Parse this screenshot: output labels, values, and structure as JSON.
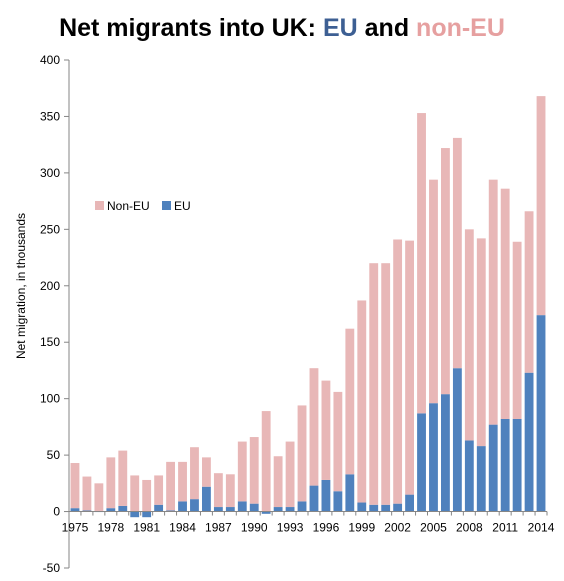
{
  "chart_data": {
    "type": "bar",
    "stacked": true,
    "title_parts": [
      "Net migrants into UK: ",
      "EU",
      " and ",
      "non-EU"
    ],
    "ylabel": "Net migration, in thousands",
    "xlabel": "",
    "ylim": [
      -50,
      400
    ],
    "yticks": [
      -50,
      0,
      50,
      100,
      150,
      200,
      250,
      300,
      350,
      400
    ],
    "categories": [
      1975,
      1976,
      1977,
      1978,
      1979,
      1980,
      1981,
      1982,
      1983,
      1984,
      1985,
      1986,
      1987,
      1988,
      1989,
      1990,
      1991,
      1992,
      1993,
      1994,
      1995,
      1996,
      1997,
      1998,
      1999,
      2000,
      2001,
      2002,
      2003,
      2004,
      2005,
      2006,
      2007,
      2008,
      2009,
      2010,
      2011,
      2012,
      2013,
      2014
    ],
    "xtick_labels": [
      "1975",
      "1978",
      "1981",
      "1984",
      "1987",
      "1990",
      "1993",
      "1996",
      "1999",
      "2002",
      "2005",
      "2008",
      "2011",
      "2014"
    ],
    "legend_position": "upper-left",
    "grid": false,
    "series": [
      {
        "name": "EU",
        "color": "#4f81bd",
        "values": [
          3,
          1,
          0,
          3,
          5,
          -5,
          -5,
          6,
          1,
          9,
          11,
          22,
          4,
          4,
          9,
          7,
          -2,
          4,
          4,
          9,
          23,
          28,
          18,
          33,
          8,
          6,
          6,
          7,
          15,
          87,
          96,
          104,
          127,
          63,
          58,
          77,
          82,
          82,
          123,
          174
        ]
      },
      {
        "name": "Non-EU",
        "color": "#e8b7b7",
        "values": [
          40,
          30,
          25,
          45,
          49,
          32,
          28,
          26,
          43,
          35,
          46,
          26,
          30,
          29,
          53,
          59,
          89,
          45,
          58,
          85,
          104,
          88,
          88,
          129,
          179,
          214,
          214,
          234,
          225,
          266,
          198,
          218,
          204,
          187,
          184,
          217,
          204,
          157,
          143,
          194
        ]
      }
    ]
  }
}
